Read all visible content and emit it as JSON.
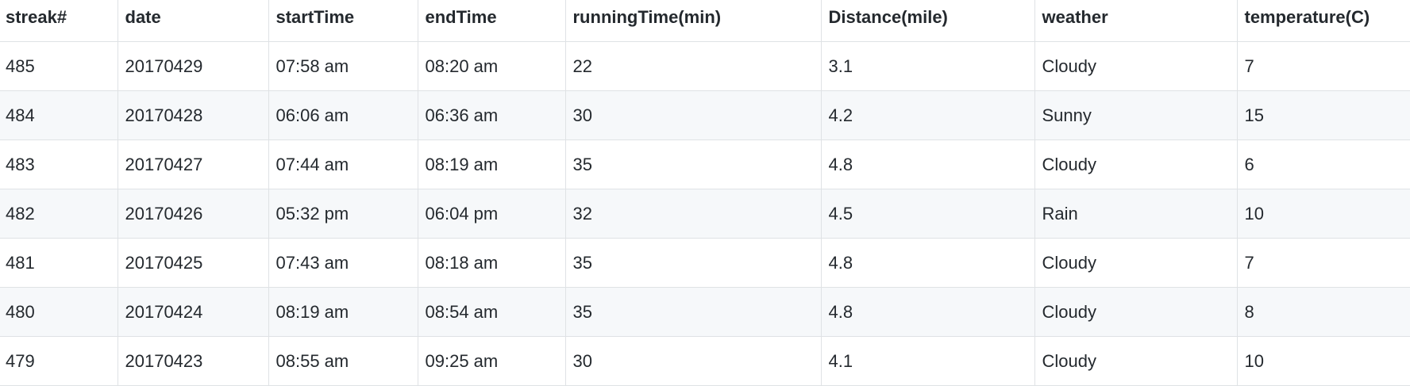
{
  "table": {
    "headers": [
      "streak#",
      "date",
      "startTime",
      "endTime",
      "runningTime(min)",
      "Distance(mile)",
      "weather",
      "temperature(C)"
    ],
    "rows": [
      [
        "485",
        "20170429",
        "07:58 am",
        "08:20 am",
        "22",
        "3.1",
        "Cloudy",
        "7"
      ],
      [
        "484",
        "20170428",
        "06:06 am",
        "06:36 am",
        "30",
        "4.2",
        "Sunny",
        "15"
      ],
      [
        "483",
        "20170427",
        "07:44 am",
        "08:19 am",
        "35",
        "4.8",
        "Cloudy",
        "6"
      ],
      [
        "482",
        "20170426",
        "05:32 pm",
        "06:04 pm",
        "32",
        "4.5",
        "Rain",
        "10"
      ],
      [
        "481",
        "20170425",
        "07:43 am",
        "08:18 am",
        "35",
        "4.8",
        "Cloudy",
        "7"
      ],
      [
        "480",
        "20170424",
        "08:19 am",
        "08:54 am",
        "35",
        "4.8",
        "Cloudy",
        "8"
      ],
      [
        "479",
        "20170423",
        "08:55 am",
        "09:25 am",
        "30",
        "4.1",
        "Cloudy",
        "10"
      ]
    ]
  }
}
